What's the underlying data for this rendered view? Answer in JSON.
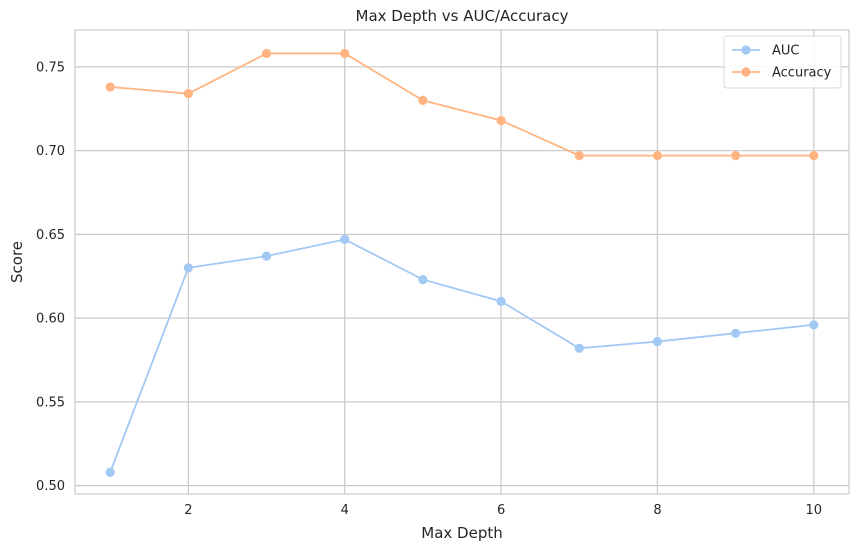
{
  "chart_data": {
    "type": "line",
    "title": "Max Depth vs AUC/Accuracy",
    "xlabel": "Max Depth",
    "ylabel": "Score",
    "x": [
      1,
      2,
      3,
      4,
      5,
      6,
      7,
      8,
      9,
      10
    ],
    "xlim": [
      0.55,
      10.45
    ],
    "ylim": [
      0.495,
      0.772
    ],
    "xticks": [
      2,
      4,
      6,
      8,
      10
    ],
    "yticks": [
      0.5,
      0.55,
      0.6,
      0.65,
      0.7,
      0.75
    ],
    "ytick_labels": [
      "0.50",
      "0.55",
      "0.60",
      "0.65",
      "0.70",
      "0.75"
    ],
    "grid": true,
    "legend_position": "top-right",
    "series": [
      {
        "name": "AUC",
        "color": "#a1c9f4",
        "marker": "circle",
        "values": [
          0.508,
          0.63,
          0.637,
          0.647,
          0.623,
          0.61,
          0.582,
          0.586,
          0.591,
          0.596
        ]
      },
      {
        "name": "Accuracy",
        "color": "#ffb482",
        "marker": "circle",
        "values": [
          0.738,
          0.734,
          0.758,
          0.758,
          0.73,
          0.718,
          0.697,
          0.697,
          0.697,
          0.697
        ]
      }
    ]
  }
}
